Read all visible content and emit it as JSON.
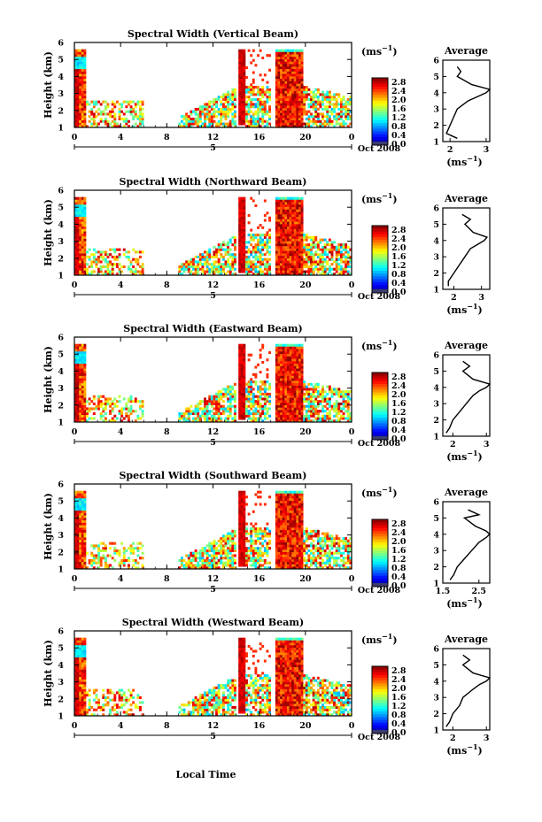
{
  "common": {
    "ylabel": "Height (km)",
    "x_ticks": [
      "0",
      "4",
      "8",
      "12",
      "16",
      "20",
      "0"
    ],
    "date_label": "Oct 2008",
    "day_label": "5",
    "unit_label": "(ms",
    "unit_exp": "−1",
    "colorbar_ticks": [
      "2.8",
      "2.4",
      "2.0",
      "1.6",
      "1.2",
      "0.8",
      "0.4",
      "0.0"
    ],
    "avg_title": "Average",
    "avg_xlabel": "(ms",
    "xlabel_bottom": "Local Time"
  },
  "chart_data": [
    {
      "type": "heatmap",
      "title": "Spectral Width (Vertical Beam)",
      "ylabel": "Height (km)",
      "ylim": [
        1,
        6
      ],
      "y_ticks": [
        "1",
        "2",
        "3",
        "4",
        "5",
        "6"
      ],
      "colorbar_ticks": [
        "2.8",
        "2.4",
        "2.0",
        "1.6",
        "1.2",
        "0.8",
        "0.4",
        "0.0"
      ],
      "colorbar_range": [
        0.0,
        3.0
      ],
      "average": {
        "title": "Average",
        "xlim": [
          1.8,
          3.1
        ],
        "x_ticks": [
          "2",
          "3"
        ],
        "y_ticks": [
          "1",
          "2",
          "3",
          "4",
          "5",
          "6"
        ],
        "heights": [
          1.2,
          1.5,
          2.0,
          2.5,
          3.0,
          3.5,
          3.8,
          4.0,
          4.2,
          4.5,
          5.0,
          5.3,
          5.6
        ],
        "values": [
          2.2,
          1.9,
          2.0,
          2.1,
          2.2,
          2.5,
          2.8,
          3.0,
          3.1,
          2.6,
          2.2,
          2.3,
          2.2
        ]
      }
    },
    {
      "type": "heatmap",
      "title": "Spectral Width (Northward Beam)",
      "ylabel": "Height (km)",
      "ylim": [
        1,
        6
      ],
      "y_ticks": [
        "1",
        "2",
        "3",
        "4",
        "5",
        "6"
      ],
      "colorbar_ticks": [
        "2.8",
        "2.4",
        "2.0",
        "1.6",
        "1.2",
        "0.8",
        "0.4",
        "0.0"
      ],
      "colorbar_range": [
        0.0,
        3.0
      ],
      "average": {
        "title": "Average",
        "xlim": [
          1.6,
          3.3
        ],
        "x_ticks": [
          "2",
          "3"
        ],
        "y_ticks": [
          "1",
          "2",
          "3",
          "4",
          "5",
          "6"
        ],
        "heights": [
          1.2,
          1.5,
          2.0,
          2.5,
          3.0,
          3.5,
          3.8,
          4.0,
          4.2,
          4.5,
          5.0,
          5.3,
          5.6
        ],
        "values": [
          1.8,
          1.8,
          2.0,
          2.2,
          2.4,
          2.6,
          2.9,
          3.1,
          3.2,
          2.7,
          2.4,
          2.6,
          2.3
        ]
      }
    },
    {
      "type": "heatmap",
      "title": "Spectral Width (Eastward Beam)",
      "ylabel": "Height (km)",
      "ylim": [
        1,
        6
      ],
      "y_ticks": [
        "1",
        "2",
        "3",
        "4",
        "5",
        "6"
      ],
      "colorbar_ticks": [
        "2.8",
        "2.4",
        "2.0",
        "1.6",
        "1.2",
        "0.8",
        "0.4",
        "0.0"
      ],
      "colorbar_range": [
        0.0,
        3.0
      ],
      "average": {
        "title": "Average",
        "xlim": [
          1.7,
          3.1
        ],
        "x_ticks": [
          "2",
          "3"
        ],
        "y_ticks": [
          "1",
          "2",
          "3",
          "4",
          "5",
          "6"
        ],
        "heights": [
          1.2,
          1.5,
          2.0,
          2.5,
          3.0,
          3.5,
          3.8,
          4.0,
          4.2,
          4.5,
          5.0,
          5.3,
          5.6
        ],
        "values": [
          1.8,
          1.9,
          2.0,
          2.2,
          2.4,
          2.6,
          2.8,
          3.0,
          3.1,
          2.6,
          2.3,
          2.5,
          2.3
        ]
      }
    },
    {
      "type": "heatmap",
      "title": "Spectral Width (Southward Beam)",
      "ylabel": "Height (km)",
      "ylim": [
        1,
        6
      ],
      "y_ticks": [
        "1",
        "2",
        "3",
        "4",
        "5",
        "6"
      ],
      "colorbar_ticks": [
        "2.8",
        "2.4",
        "2.0",
        "1.6",
        "1.2",
        "0.8",
        "0.4",
        "0.0"
      ],
      "colorbar_range": [
        0.0,
        3.0
      ],
      "average": {
        "title": "Average",
        "xlim": [
          1.5,
          2.8
        ],
        "x_ticks": [
          "1.5",
          "2.5"
        ],
        "y_ticks": [
          "1",
          "2",
          "3",
          "4",
          "5",
          "6"
        ],
        "heights": [
          1.2,
          1.5,
          2.0,
          2.5,
          3.0,
          3.5,
          3.8,
          4.0,
          4.2,
          4.5,
          5.0,
          5.2,
          5.5
        ],
        "values": [
          1.7,
          1.8,
          1.9,
          2.1,
          2.3,
          2.5,
          2.7,
          2.8,
          2.7,
          2.4,
          2.1,
          2.5,
          2.2
        ]
      }
    },
    {
      "type": "heatmap",
      "title": "Spectral Width (Westward Beam)",
      "ylabel": "Height (km)",
      "ylim": [
        1,
        6
      ],
      "y_ticks": [
        "1",
        "2",
        "3",
        "4",
        "5",
        "6"
      ],
      "colorbar_ticks": [
        "2.8",
        "2.4",
        "2.0",
        "1.6",
        "1.2",
        "0.8",
        "0.4",
        "0.0"
      ],
      "colorbar_range": [
        0.0,
        3.0
      ],
      "average": {
        "title": "Average",
        "xlim": [
          1.7,
          3.1
        ],
        "x_ticks": [
          "2",
          "3"
        ],
        "y_ticks": [
          "1",
          "2",
          "3",
          "4",
          "5",
          "6"
        ],
        "heights": [
          1.2,
          1.5,
          2.0,
          2.5,
          3.0,
          3.5,
          3.8,
          4.0,
          4.2,
          4.5,
          5.0,
          5.3,
          5.6
        ],
        "values": [
          1.8,
          1.9,
          2.0,
          2.2,
          2.3,
          2.6,
          2.8,
          3.0,
          3.1,
          2.6,
          2.3,
          2.5,
          2.3
        ]
      }
    }
  ]
}
